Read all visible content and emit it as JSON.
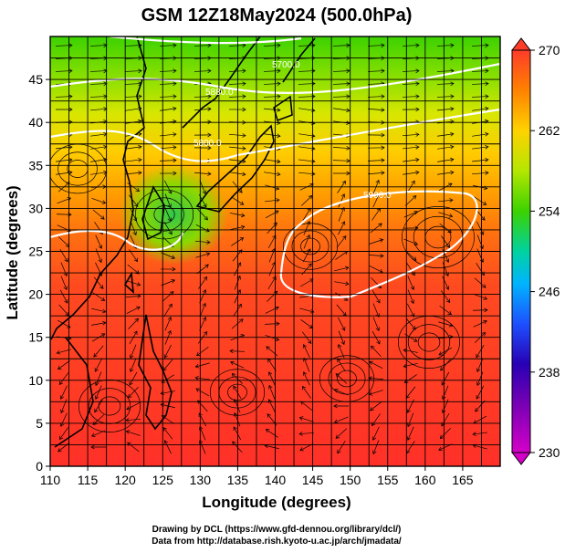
{
  "chart_data": {
    "type": "heatmap",
    "title": "GSM 12Z18May2024 (500.0hPa)",
    "xlabel": "Longitude (degrees)",
    "ylabel": "Latitude  (degrees)",
    "xlim": [
      110,
      170
    ],
    "ylim": [
      0,
      50
    ],
    "x_ticks": [
      "110",
      "115",
      "120",
      "125",
      "130",
      "135",
      "140",
      "145",
      "150",
      "155",
      "160",
      "165"
    ],
    "y_ticks": [
      "0",
      "5",
      "10",
      "15",
      "20",
      "25",
      "30",
      "35",
      "40",
      "45"
    ],
    "grid": true,
    "colorbar": {
      "ticks": [
        "230",
        "238",
        "246",
        "254",
        "262",
        "270"
      ],
      "range": [
        230,
        270
      ],
      "colors": [
        "#d400c8",
        "#3c00b0",
        "#1e3cff",
        "#00b4ff",
        "#00d2a0",
        "#3cd200",
        "#b4e600",
        "#ffd200",
        "#ff8200",
        "#ff3c28"
      ]
    },
    "field_samples": [
      {
        "lat": 48,
        "lon": 125,
        "value": 252
      },
      {
        "lat": 48,
        "lon": 140,
        "value": 254
      },
      {
        "lat": 45,
        "lon": 115,
        "value": 259
      },
      {
        "lat": 45,
        "lon": 160,
        "value": 258
      },
      {
        "lat": 40,
        "lon": 120,
        "value": 261
      },
      {
        "lat": 40,
        "lon": 150,
        "value": 261
      },
      {
        "lat": 35,
        "lon": 112,
        "value": 263
      },
      {
        "lat": 32,
        "lon": 125,
        "value": 256
      },
      {
        "lat": 30,
        "lon": 150,
        "value": 266
      },
      {
        "lat": 25,
        "lon": 130,
        "value": 266
      },
      {
        "lat": 20,
        "lon": 140,
        "value": 268
      },
      {
        "lat": 15,
        "lon": 120,
        "value": 269
      },
      {
        "lat": 10,
        "lon": 150,
        "value": 269
      },
      {
        "lat": 5,
        "lon": 165,
        "value": 270
      }
    ],
    "contours": [
      {
        "label": "5700.0"
      },
      {
        "label": "5800.0"
      },
      {
        "label": "5880.0"
      },
      {
        "label": "5900.0"
      },
      {
        "label": "5900.0"
      }
    ]
  },
  "credits": {
    "line1": "Drawing by DCL (https://www.gfd-dennou.org/library/dcl/)",
    "line2": "Data from http://database.rish.kyoto-u.ac.jp/arch/jmadata/"
  },
  "colors": {
    "background": "#ffffff",
    "contour": "#ffffff",
    "coast": "#000000",
    "streamline": "#000000"
  }
}
